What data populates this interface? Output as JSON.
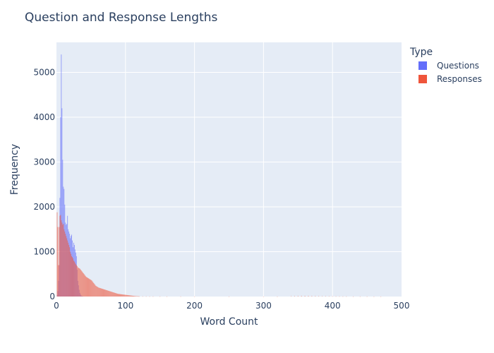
{
  "chart_data": {
    "type": "histogram",
    "title": "Question and Response Lengths",
    "xlabel": "Word Count",
    "ylabel": "Frequency",
    "xlim": [
      0,
      500
    ],
    "ylim": [
      0,
      5670
    ],
    "xticks": [
      0,
      100,
      200,
      300,
      400,
      500
    ],
    "yticks": [
      0,
      1000,
      2000,
      3000,
      4000,
      5000
    ],
    "grid": true,
    "barmode": "overlay",
    "bin_width": 1,
    "legend": {
      "title": "Type",
      "placement": "right"
    },
    "series": [
      {
        "name": "Questions",
        "color": "#636efa",
        "opacity": 0.6,
        "points": [
          [
            1,
            30
          ],
          [
            2,
            120
          ],
          [
            3,
            350
          ],
          [
            4,
            700
          ],
          [
            5,
            2200
          ],
          [
            6,
            4000
          ],
          [
            7,
            5400
          ],
          [
            8,
            4200
          ],
          [
            9,
            3050
          ],
          [
            10,
            2450
          ],
          [
            11,
            2400
          ],
          [
            12,
            2050
          ],
          [
            13,
            1650
          ],
          [
            14,
            1600
          ],
          [
            15,
            1620
          ],
          [
            16,
            1800
          ],
          [
            17,
            1500
          ],
          [
            18,
            1450
          ],
          [
            19,
            1400
          ],
          [
            20,
            1300
          ],
          [
            21,
            1350
          ],
          [
            22,
            1380
          ],
          [
            23,
            1250
          ],
          [
            24,
            1100
          ],
          [
            25,
            1200
          ],
          [
            26,
            1150
          ],
          [
            27,
            1050
          ],
          [
            28,
            980
          ],
          [
            29,
            900
          ],
          [
            30,
            600
          ],
          [
            31,
            350
          ],
          [
            32,
            250
          ],
          [
            33,
            150
          ],
          [
            34,
            80
          ],
          [
            35,
            40
          ],
          [
            36,
            20
          ],
          [
            37,
            10
          ],
          [
            38,
            5
          ]
        ]
      },
      {
        "name": "Responses",
        "color": "#ef553b",
        "opacity": 0.6,
        "points": [
          [
            1,
            1880
          ],
          [
            2,
            1550
          ],
          [
            3,
            700
          ],
          [
            4,
            1550
          ],
          [
            5,
            1800
          ],
          [
            6,
            1820
          ],
          [
            7,
            1700
          ],
          [
            8,
            1650
          ],
          [
            9,
            1600
          ],
          [
            10,
            1620
          ],
          [
            11,
            1500
          ],
          [
            12,
            1450
          ],
          [
            13,
            1400
          ],
          [
            14,
            1350
          ],
          [
            15,
            1300
          ],
          [
            16,
            1250
          ],
          [
            17,
            1200
          ],
          [
            18,
            1150
          ],
          [
            19,
            1100
          ],
          [
            20,
            1000
          ],
          [
            21,
            950
          ],
          [
            22,
            900
          ],
          [
            23,
            880
          ],
          [
            24,
            850
          ],
          [
            25,
            800
          ],
          [
            26,
            780
          ],
          [
            27,
            750
          ],
          [
            28,
            720
          ],
          [
            29,
            700
          ],
          [
            30,
            680
          ],
          [
            31,
            650
          ],
          [
            32,
            640
          ],
          [
            33,
            630
          ],
          [
            34,
            620
          ],
          [
            35,
            600
          ],
          [
            36,
            580
          ],
          [
            37,
            560
          ],
          [
            38,
            540
          ],
          [
            39,
            520
          ],
          [
            40,
            500
          ],
          [
            41,
            480
          ],
          [
            42,
            460
          ],
          [
            43,
            440
          ],
          [
            44,
            430
          ],
          [
            45,
            420
          ],
          [
            46,
            410
          ],
          [
            47,
            400
          ],
          [
            48,
            390
          ],
          [
            49,
            380
          ],
          [
            50,
            370
          ],
          [
            51,
            360
          ],
          [
            52,
            340
          ],
          [
            53,
            320
          ],
          [
            54,
            300
          ],
          [
            55,
            280
          ],
          [
            56,
            260
          ],
          [
            57,
            240
          ],
          [
            58,
            230
          ],
          [
            59,
            220
          ],
          [
            60,
            210
          ],
          [
            61,
            200
          ],
          [
            62,
            195
          ],
          [
            63,
            190
          ],
          [
            64,
            185
          ],
          [
            65,
            180
          ],
          [
            66,
            175
          ],
          [
            67,
            170
          ],
          [
            68,
            165
          ],
          [
            69,
            160
          ],
          [
            70,
            155
          ],
          [
            71,
            150
          ],
          [
            72,
            145
          ],
          [
            73,
            140
          ],
          [
            74,
            135
          ],
          [
            75,
            130
          ],
          [
            76,
            125
          ],
          [
            77,
            120
          ],
          [
            78,
            115
          ],
          [
            79,
            110
          ],
          [
            80,
            105
          ],
          [
            81,
            100
          ],
          [
            82,
            95
          ],
          [
            83,
            90
          ],
          [
            84,
            85
          ],
          [
            85,
            80
          ],
          [
            86,
            75
          ],
          [
            87,
            70
          ],
          [
            88,
            65
          ],
          [
            89,
            60
          ],
          [
            90,
            58
          ],
          [
            91,
            56
          ],
          [
            92,
            54
          ],
          [
            93,
            52
          ],
          [
            94,
            50
          ],
          [
            95,
            48
          ],
          [
            96,
            46
          ],
          [
            97,
            44
          ],
          [
            98,
            42
          ],
          [
            99,
            40
          ],
          [
            100,
            38
          ],
          [
            101,
            36
          ],
          [
            102,
            34
          ],
          [
            103,
            32
          ],
          [
            104,
            30
          ],
          [
            105,
            28
          ],
          [
            106,
            26
          ],
          [
            107,
            24
          ],
          [
            108,
            22
          ],
          [
            109,
            20
          ],
          [
            110,
            18
          ],
          [
            111,
            16
          ],
          [
            112,
            14
          ],
          [
            113,
            12
          ],
          [
            114,
            10
          ],
          [
            115,
            9
          ],
          [
            116,
            8
          ],
          [
            117,
            7
          ],
          [
            118,
            6
          ],
          [
            119,
            5
          ],
          [
            120,
            5
          ],
          [
            125,
            4
          ],
          [
            130,
            4
          ],
          [
            135,
            3
          ],
          [
            140,
            3
          ],
          [
            150,
            3
          ],
          [
            160,
            2
          ],
          [
            180,
            2
          ],
          [
            200,
            2
          ],
          [
            250,
            1
          ],
          [
            300,
            1
          ],
          [
            320,
            1
          ],
          [
            340,
            8
          ],
          [
            345,
            10
          ],
          [
            350,
            12
          ],
          [
            355,
            14
          ],
          [
            360,
            15
          ],
          [
            365,
            14
          ],
          [
            370,
            12
          ],
          [
            375,
            10
          ],
          [
            380,
            9
          ],
          [
            385,
            8
          ],
          [
            390,
            7
          ],
          [
            395,
            6
          ],
          [
            400,
            5
          ],
          [
            405,
            4
          ],
          [
            410,
            4
          ],
          [
            415,
            3
          ],
          [
            420,
            3
          ],
          [
            430,
            2
          ],
          [
            440,
            2
          ],
          [
            450,
            2
          ],
          [
            460,
            1
          ],
          [
            470,
            1
          ]
        ]
      }
    ]
  }
}
